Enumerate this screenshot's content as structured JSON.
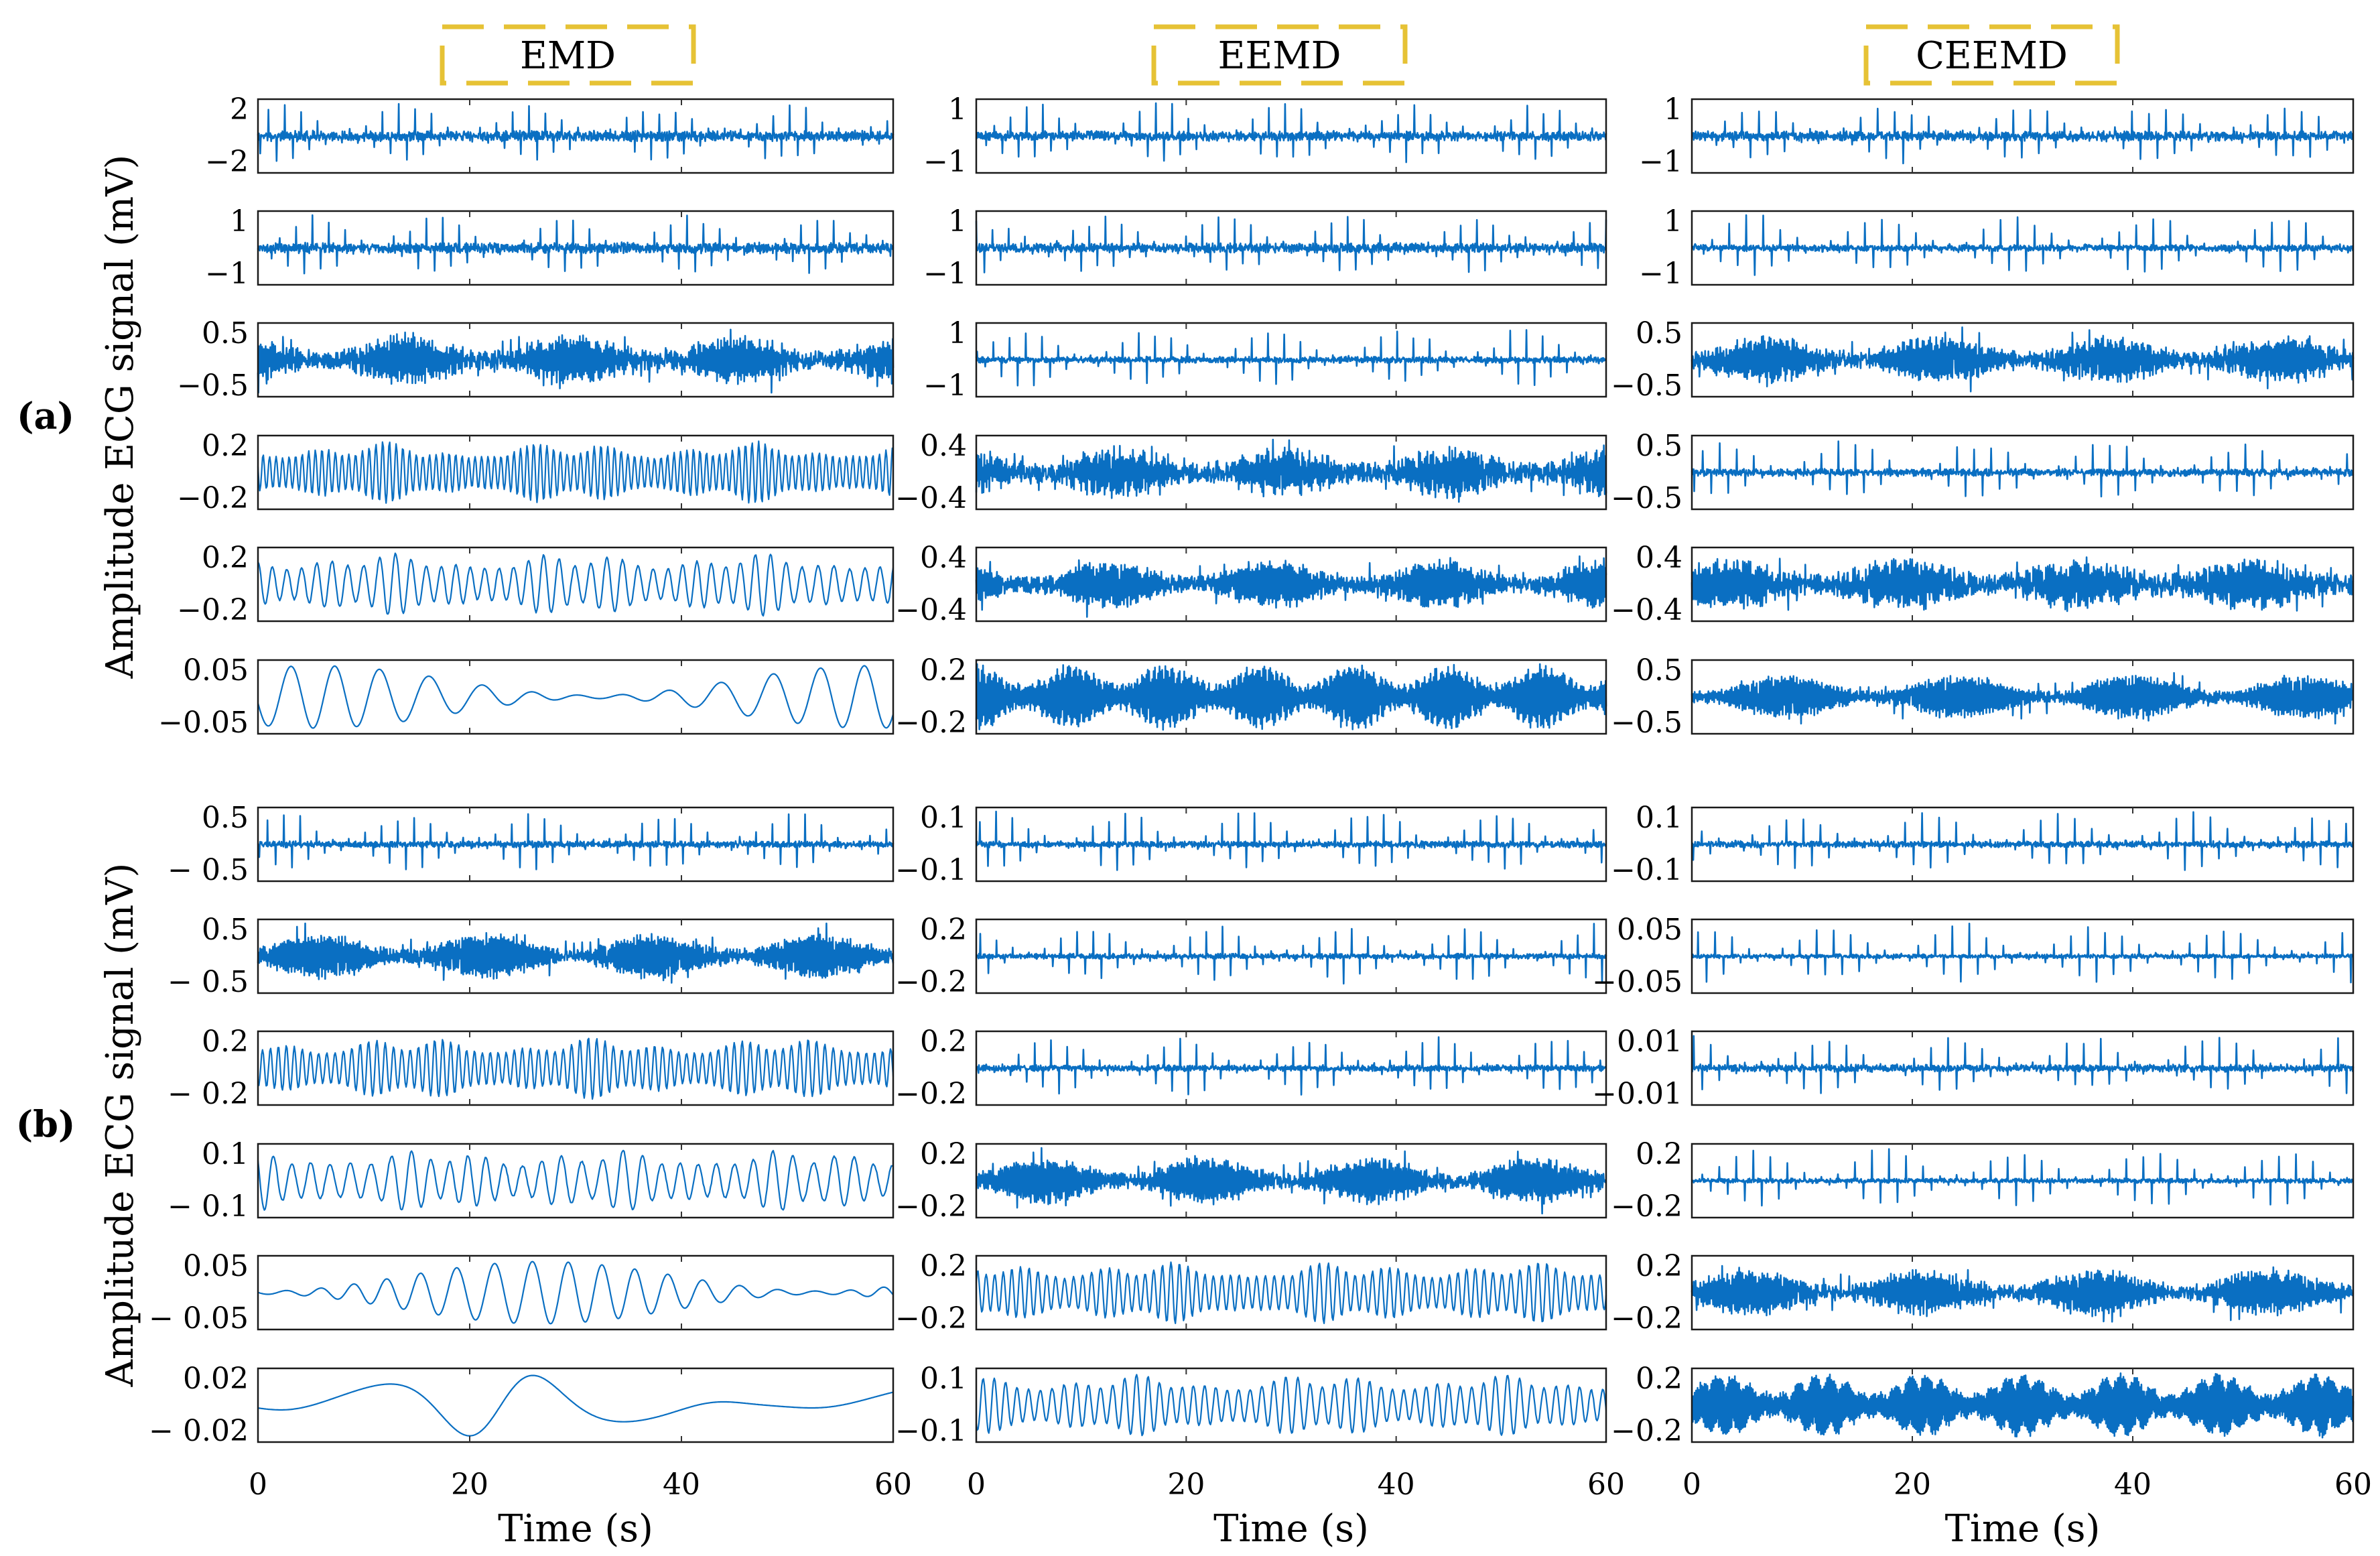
{
  "chart_data": {
    "type": "line",
    "description_labels": {
      "methods": [
        "EMD",
        "EEMD",
        "CEEMD"
      ],
      "panels": [
        "(a)",
        "(b)"
      ],
      "ylabel": "Amplitude ECG signal (mV)",
      "xlabel": "Time (s)"
    },
    "xlim": [
      0,
      60
    ],
    "xticks": [
      0,
      20,
      40,
      60
    ],
    "series_color": "#0a6fc2",
    "title_box_color": "#e6c235",
    "panels": [
      {
        "label": "(a)",
        "ylabel": "Amplitude ECG signal (mV)",
        "columns": [
          {
            "method": "EMD",
            "imfs": [
              {
                "yticks": [
                  "2",
                  "−2"
                ],
                "amplitude": 2,
                "style": "spiky",
                "freq": 1.3,
                "density": 1.0
              },
              {
                "yticks": [
                  "1",
                  "−1"
                ],
                "amplitude": 1,
                "style": "spiky",
                "freq": 1.3,
                "density": 1.0
              },
              {
                "yticks": [
                  "0.5",
                  "−0.5"
                ],
                "amplitude": 0.5,
                "style": "noisy",
                "freq": 2.2,
                "density": 0.7
              },
              {
                "yticks": [
                  "0.2",
                  "−0.2"
                ],
                "amplitude": 0.2,
                "style": "osc",
                "freq": 1.6,
                "density": 0.5
              },
              {
                "yticks": [
                  "0.2",
                  "−0.2"
                ],
                "amplitude": 0.2,
                "style": "osc",
                "freq": 0.7,
                "density": 0.5
              },
              {
                "yticks": [
                  "0.05",
                  "−0.05"
                ],
                "amplitude": 0.05,
                "style": "slow",
                "freq": 0.22,
                "density": 0.6
              }
            ]
          },
          {
            "method": "EEMD",
            "imfs": [
              {
                "yticks": [
                  "1",
                  "−1"
                ],
                "amplitude": 1,
                "style": "spiky",
                "freq": 1.3,
                "density": 0.9
              },
              {
                "yticks": [
                  "1",
                  "−1"
                ],
                "amplitude": 1,
                "style": "spiky",
                "freq": 1.3,
                "density": 0.9
              },
              {
                "yticks": [
                  "1",
                  "−1"
                ],
                "amplitude": 1,
                "style": "spiky",
                "freq": 1.3,
                "density": 0.6
              },
              {
                "yticks": [
                  "0.4",
                  "−0.4"
                ],
                "amplitude": 0.4,
                "style": "noisy",
                "freq": 2.4,
                "density": 0.8
              },
              {
                "yticks": [
                  "0.4",
                  "−0.4"
                ],
                "amplitude": 0.4,
                "style": "noisy",
                "freq": 2.0,
                "density": 0.6
              },
              {
                "yticks": [
                  "0.2",
                  "−0.2"
                ],
                "amplitude": 0.2,
                "style": "dense",
                "freq": 1.8,
                "density": 0.8
              }
            ]
          },
          {
            "method": "CEEMD",
            "imfs": [
              {
                "yticks": [
                  "1",
                  "−1"
                ],
                "amplitude": 1,
                "style": "spiky",
                "freq": 1.3,
                "density": 0.9
              },
              {
                "yticks": [
                  "1",
                  "−1"
                ],
                "amplitude": 1,
                "style": "spiky",
                "freq": 1.3,
                "density": 0.6
              },
              {
                "yticks": [
                  "0.5",
                  "−0.5"
                ],
                "amplitude": 0.5,
                "style": "noisy",
                "freq": 2.4,
                "density": 0.6
              },
              {
                "yticks": [
                  "0.5",
                  "−0.5"
                ],
                "amplitude": 0.5,
                "style": "spiky",
                "freq": 1.3,
                "density": 0.7
              },
              {
                "yticks": [
                  "0.4",
                  "−0.4"
                ],
                "amplitude": 0.4,
                "style": "noisy",
                "freq": 2.0,
                "density": 0.9
              },
              {
                "yticks": [
                  "0.5",
                  "−0.5"
                ],
                "amplitude": 0.5,
                "style": "noisy",
                "freq": 2.2,
                "density": 0.35
              }
            ]
          }
        ]
      },
      {
        "label": "(b)",
        "ylabel": "Amplitude ECG signal (mV)",
        "columns": [
          {
            "method": "EMD",
            "imfs": [
              {
                "yticks": [
                  "0.5",
                  "− 0.5"
                ],
                "amplitude": 0.5,
                "style": "spiky",
                "freq": 1.3,
                "density": 0.6
              },
              {
                "yticks": [
                  "0.5",
                  "− 0.5"
                ],
                "amplitude": 0.5,
                "style": "noisy",
                "freq": 2.2,
                "density": 0.45
              },
              {
                "yticks": [
                  "0.2",
                  "− 0.2"
                ],
                "amplitude": 0.2,
                "style": "osc",
                "freq": 1.3,
                "density": 0.5
              },
              {
                "yticks": [
                  "0.1",
                  "− 0.1"
                ],
                "amplitude": 0.1,
                "style": "osc",
                "freq": 0.55,
                "density": 0.6
              },
              {
                "yticks": [
                  "0.05",
                  "− 0.05"
                ],
                "amplitude": 0.05,
                "style": "slow",
                "freq": 0.3,
                "density": 0.6
              },
              {
                "yticks": [
                  "0.02",
                  "− 0.02"
                ],
                "amplitude": 0.02,
                "style": "slow",
                "freq": 0.06,
                "density": 0.85
              }
            ]
          },
          {
            "method": "EEMD",
            "imfs": [
              {
                "yticks": [
                  "0.1",
                  "−0.1"
                ],
                "amplitude": 0.1,
                "style": "spiky",
                "freq": 1.3,
                "density": 0.6
              },
              {
                "yticks": [
                  "0.2",
                  "−0.2"
                ],
                "amplitude": 0.2,
                "style": "spiky",
                "freq": 1.3,
                "density": 0.5
              },
              {
                "yticks": [
                  "0.2",
                  "−0.2"
                ],
                "amplitude": 0.2,
                "style": "spiky",
                "freq": 1.3,
                "density": 0.6
              },
              {
                "yticks": [
                  "0.2",
                  "−0.2"
                ],
                "amplitude": 0.2,
                "style": "noisy",
                "freq": 1.8,
                "density": 0.5
              },
              {
                "yticks": [
                  "0.2",
                  "−0.2"
                ],
                "amplitude": 0.2,
                "style": "osc",
                "freq": 1.2,
                "density": 0.5
              },
              {
                "yticks": [
                  "0.1",
                  "−0.1"
                ],
                "amplitude": 0.1,
                "style": "osc",
                "freq": 0.9,
                "density": 0.5
              }
            ]
          },
          {
            "method": "CEEMD",
            "imfs": [
              {
                "yticks": [
                  "0.1",
                  "−0.1"
                ],
                "amplitude": 0.1,
                "style": "spiky",
                "freq": 1.3,
                "density": 0.6
              },
              {
                "yticks": [
                  "0.05",
                  "−0.05"
                ],
                "amplitude": 0.05,
                "style": "spiky",
                "freq": 1.3,
                "density": 0.4
              },
              {
                "yticks": [
                  "0.01",
                  "−0.01"
                ],
                "amplitude": 0.01,
                "style": "spiky",
                "freq": 1.3,
                "density": 0.7
              },
              {
                "yticks": [
                  "0.2",
                  "−0.2"
                ],
                "amplitude": 0.2,
                "style": "spiky",
                "freq": 1.3,
                "density": 0.45
              },
              {
                "yticks": [
                  "0.2",
                  "−0.2"
                ],
                "amplitude": 0.2,
                "style": "noisy",
                "freq": 2.2,
                "density": 0.55
              },
              {
                "yticks": [
                  "0.2",
                  "−0.2"
                ],
                "amplitude": 0.2,
                "style": "dense",
                "freq": 2.0,
                "density": 0.55
              }
            ]
          }
        ]
      }
    ]
  }
}
